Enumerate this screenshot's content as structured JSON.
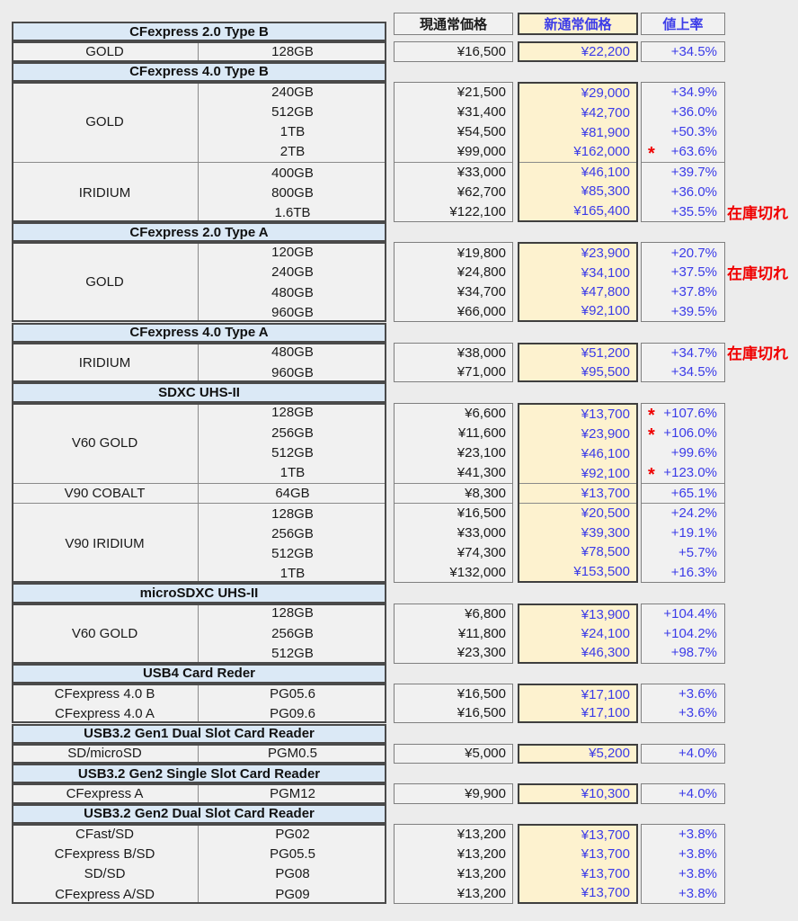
{
  "columns": {
    "current": "現通常価格",
    "new": "新通常価格",
    "rate": "値上率"
  },
  "labels": {
    "out_of_stock": "在庫切れ",
    "asterisk": "*"
  },
  "colors": {
    "accent_blue": "#3b3be8",
    "alert_red": "#f00000",
    "highlight_yellow": "#fdf2cf",
    "section_header_blue": "#dbe9f6",
    "cell_gray": "#f1f1f1"
  },
  "sections": [
    {
      "title": "CFexpress 2.0 Type B",
      "groups": [
        {
          "name": "GOLD",
          "rows": [
            {
              "capacity": "128GB",
              "current": "¥16,500",
              "new": "¥22,200",
              "rate": "+34.5%"
            }
          ]
        }
      ]
    },
    {
      "title": "CFexpress 4.0 Type B",
      "groups": [
        {
          "name": "GOLD",
          "rows": [
            {
              "capacity": "240GB",
              "current": "¥21,500",
              "new": "¥29,000",
              "rate": "+34.9%"
            },
            {
              "capacity": "512GB",
              "current": "¥31,400",
              "new": "¥42,700",
              "rate": "+36.0%"
            },
            {
              "capacity": "1TB",
              "current": "¥54,500",
              "new": "¥81,900",
              "rate": "+50.3%"
            },
            {
              "capacity": "2TB",
              "current": "¥99,000",
              "new": "¥162,000",
              "rate": "+63.6%",
              "asterisk": true
            }
          ]
        },
        {
          "name": "IRIDIUM",
          "rows": [
            {
              "capacity": "400GB",
              "current": "¥33,000",
              "new": "¥46,100",
              "rate": "+39.7%"
            },
            {
              "capacity": "800GB",
              "current": "¥62,700",
              "new": "¥85,300",
              "rate": "+36.0%"
            },
            {
              "capacity": "1.6TB",
              "current": "¥122,100",
              "new": "¥165,400",
              "rate": "+35.5%",
              "out_of_stock": true
            }
          ]
        }
      ]
    },
    {
      "title": "CFexpress 2.0 Type A",
      "groups": [
        {
          "name": "GOLD",
          "rows": [
            {
              "capacity": "120GB",
              "current": "¥19,800",
              "new": "¥23,900",
              "rate": "+20.7%"
            },
            {
              "capacity": "240GB",
              "current": "¥24,800",
              "new": "¥34,100",
              "rate": "+37.5%",
              "out_of_stock": true
            },
            {
              "capacity": "480GB",
              "current": "¥34,700",
              "new": "¥47,800",
              "rate": "+37.8%"
            },
            {
              "capacity": "960GB",
              "current": "¥66,000",
              "new": "¥92,100",
              "rate": "+39.5%"
            }
          ]
        }
      ]
    },
    {
      "title": "CFexpress 4.0 Type A",
      "groups": [
        {
          "name": "IRIDIUM",
          "rows": [
            {
              "capacity": "480GB",
              "current": "¥38,000",
              "new": "¥51,200",
              "rate": "+34.7%",
              "out_of_stock": true
            },
            {
              "capacity": "960GB",
              "current": "¥71,000",
              "new": "¥95,500",
              "rate": "+34.5%"
            }
          ]
        }
      ]
    },
    {
      "title": "SDXC UHS-II",
      "groups": [
        {
          "name": "V60 GOLD",
          "rows": [
            {
              "capacity": "128GB",
              "current": "¥6,600",
              "new": "¥13,700",
              "rate": "+107.6%",
              "asterisk": true
            },
            {
              "capacity": "256GB",
              "current": "¥11,600",
              "new": "¥23,900",
              "rate": "+106.0%",
              "asterisk": true
            },
            {
              "capacity": "512GB",
              "current": "¥23,100",
              "new": "¥46,100",
              "rate": "+99.6%"
            },
            {
              "capacity": "1TB",
              "current": "¥41,300",
              "new": "¥92,100",
              "rate": "+123.0%",
              "asterisk": true
            }
          ]
        },
        {
          "name": "V90 COBALT",
          "rows": [
            {
              "capacity": "64GB",
              "current": "¥8,300",
              "new": "¥13,700",
              "rate": "+65.1%"
            }
          ]
        },
        {
          "name": "V90 IRIDIUM",
          "rows": [
            {
              "capacity": "128GB",
              "current": "¥16,500",
              "new": "¥20,500",
              "rate": "+24.2%"
            },
            {
              "capacity": "256GB",
              "current": "¥33,000",
              "new": "¥39,300",
              "rate": "+19.1%"
            },
            {
              "capacity": "512GB",
              "current": "¥74,300",
              "new": "¥78,500",
              "rate": "+5.7%"
            },
            {
              "capacity": "1TB",
              "current": "¥132,000",
              "new": "¥153,500",
              "rate": "+16.3%"
            }
          ]
        }
      ]
    },
    {
      "title": "microSDXC UHS-II",
      "groups": [
        {
          "name": "V60 GOLD",
          "rows": [
            {
              "capacity": "128GB",
              "current": "¥6,800",
              "new": "¥13,900",
              "rate": "+104.4%"
            },
            {
              "capacity": "256GB",
              "current": "¥11,800",
              "new": "¥24,100",
              "rate": "+104.2%"
            },
            {
              "capacity": "512GB",
              "current": "¥23,300",
              "new": "¥46,300",
              "rate": "+98.7%"
            }
          ]
        }
      ]
    },
    {
      "title": "USB4 Card Reder",
      "groups": [
        {
          "name": null,
          "rows": [
            {
              "name": "CFexpress 4.0 B",
              "capacity": "PG05.6",
              "current": "¥16,500",
              "new": "¥17,100",
              "rate": "+3.6%"
            },
            {
              "name": "CFexpress 4.0 A",
              "capacity": "PG09.6",
              "current": "¥16,500",
              "new": "¥17,100",
              "rate": "+3.6%"
            }
          ]
        }
      ]
    },
    {
      "title": "USB3.2 Gen1 Dual Slot Card Reader",
      "groups": [
        {
          "name": null,
          "rows": [
            {
              "name": "SD/microSD",
              "capacity": "PGM0.5",
              "current": "¥5,000",
              "new": "¥5,200",
              "rate": "+4.0%"
            }
          ]
        }
      ]
    },
    {
      "title": "USB3.2 Gen2 Single Slot Card Reader",
      "groups": [
        {
          "name": null,
          "rows": [
            {
              "name": "CFexpress A",
              "capacity": "PGM12",
              "current": "¥9,900",
              "new": "¥10,300",
              "rate": "+4.0%"
            }
          ]
        }
      ]
    },
    {
      "title": "USB3.2 Gen2 Dual Slot Card Reader",
      "groups": [
        {
          "name": null,
          "rows": [
            {
              "name": "CFast/SD",
              "capacity": "PG02",
              "current": "¥13,200",
              "new": "¥13,700",
              "rate": "+3.8%"
            },
            {
              "name": "CFexpress B/SD",
              "capacity": "PG05.5",
              "current": "¥13,200",
              "new": "¥13,700",
              "rate": "+3.8%"
            },
            {
              "name": "SD/SD",
              "capacity": "PG08",
              "current": "¥13,200",
              "new": "¥13,700",
              "rate": "+3.8%"
            },
            {
              "name": "CFexpress A/SD",
              "capacity": "PG09",
              "current": "¥13,200",
              "new": "¥13,700",
              "rate": "+3.8%"
            }
          ]
        }
      ]
    }
  ]
}
